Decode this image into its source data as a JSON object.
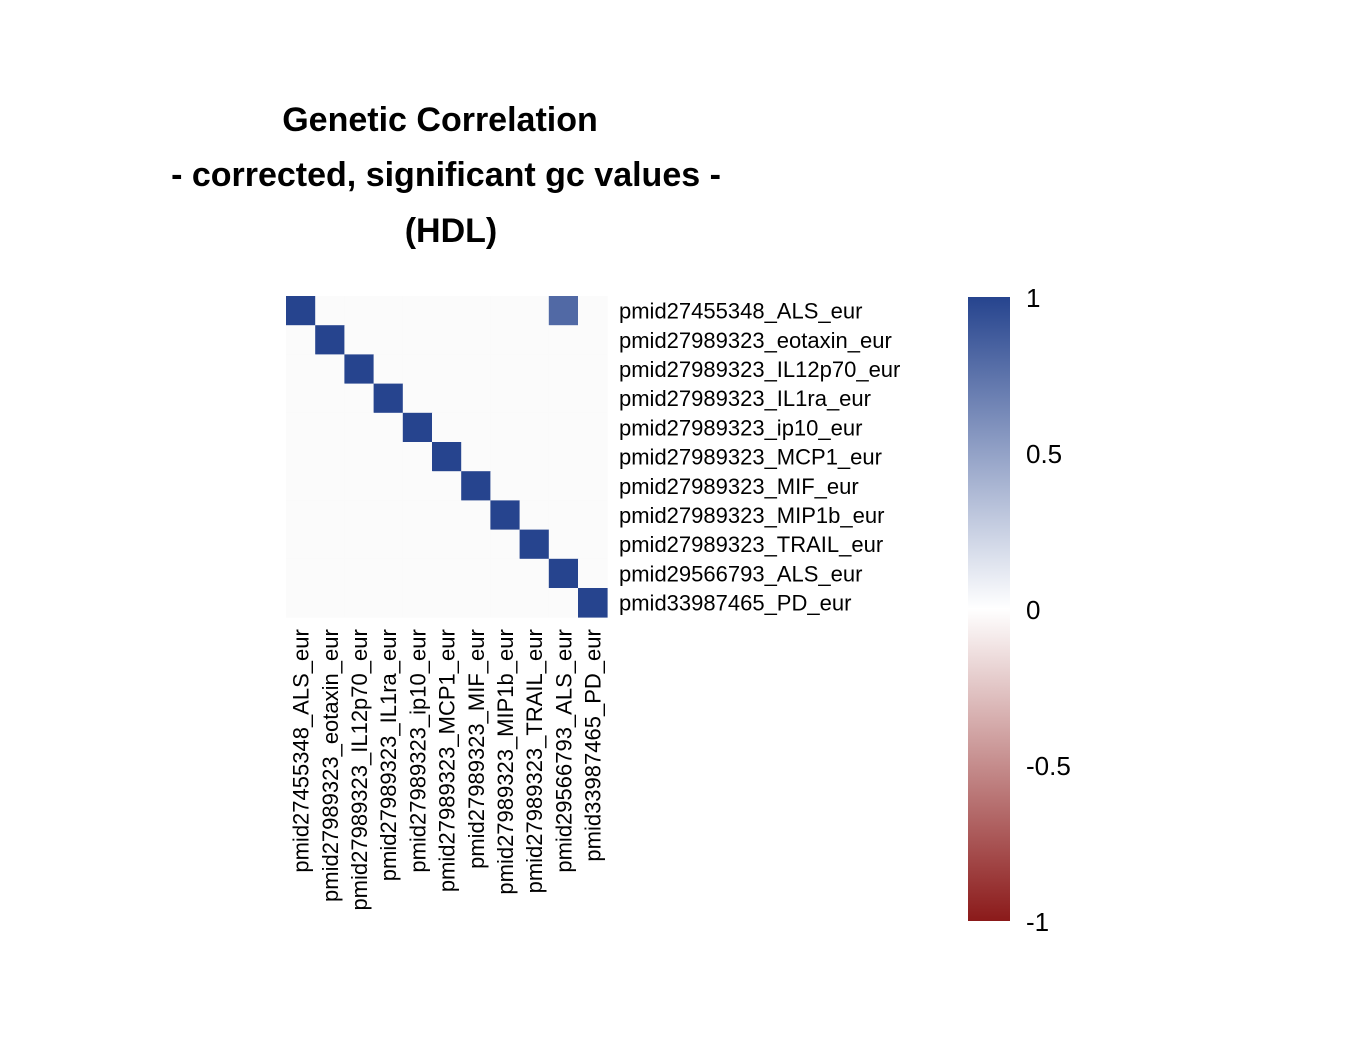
{
  "title_lines": [
    "Genetic Correlation",
    "- corrected, significant gc values -",
    "(HDL)"
  ],
  "colors": {
    "high": "#26448e",
    "mid": "#ffffff",
    "low": "#8b1a1a",
    "na_cell": "#fbfbfb"
  },
  "chart_data": {
    "type": "heatmap",
    "title": "Genetic Correlation - corrected, significant gc values - (HDL)",
    "row_labels": [
      "pmid27455348_ALS_eur",
      "pmid27989323_eotaxin_eur",
      "pmid27989323_IL12p70_eur",
      "pmid27989323_IL1ra_eur",
      "pmid27989323_ip10_eur",
      "pmid27989323_MCP1_eur",
      "pmid27989323_MIF_eur",
      "pmid27989323_MIP1b_eur",
      "pmid27989323_TRAIL_eur",
      "pmid29566793_ALS_eur",
      "pmid33987465_PD_eur"
    ],
    "col_labels": [
      "pmid27455348_ALS_eur",
      "pmid27989323_eotaxin_eur",
      "pmid27989323_IL12p70_eur",
      "pmid27989323_IL1ra_eur",
      "pmid27989323_ip10_eur",
      "pmid27989323_MCP1_eur",
      "pmid27989323_MIF_eur",
      "pmid27989323_MIP1b_eur",
      "pmid27989323_TRAIL_eur",
      "pmid29566793_ALS_eur",
      "pmid33987465_PD_eur"
    ],
    "values": [
      [
        1,
        null,
        null,
        null,
        null,
        null,
        null,
        null,
        null,
        0.8,
        null
      ],
      [
        null,
        1,
        null,
        null,
        null,
        null,
        null,
        null,
        null,
        null,
        null
      ],
      [
        null,
        null,
        1,
        null,
        null,
        null,
        null,
        null,
        null,
        null,
        null
      ],
      [
        null,
        null,
        null,
        1,
        null,
        null,
        null,
        null,
        null,
        null,
        null
      ],
      [
        null,
        null,
        null,
        null,
        1,
        null,
        null,
        null,
        null,
        null,
        null
      ],
      [
        null,
        null,
        null,
        null,
        null,
        1,
        null,
        null,
        null,
        null,
        null
      ],
      [
        null,
        null,
        null,
        null,
        null,
        null,
        1,
        null,
        null,
        null,
        null
      ],
      [
        null,
        null,
        null,
        null,
        null,
        null,
        null,
        1,
        null,
        null,
        null
      ],
      [
        null,
        null,
        null,
        null,
        null,
        null,
        null,
        null,
        1,
        null,
        null
      ],
      [
        null,
        null,
        null,
        null,
        null,
        null,
        null,
        null,
        null,
        1,
        null
      ],
      [
        null,
        null,
        null,
        null,
        null,
        null,
        null,
        null,
        null,
        null,
        1
      ]
    ],
    "color_scale": {
      "range": [
        -1,
        1
      ],
      "ticks": [
        1,
        0.5,
        0,
        -0.5,
        -1
      ],
      "tick_labels": [
        "1",
        "0.5",
        "0",
        "-0.5",
        "-1"
      ]
    },
    "legend_placement": "right",
    "grid": false
  }
}
